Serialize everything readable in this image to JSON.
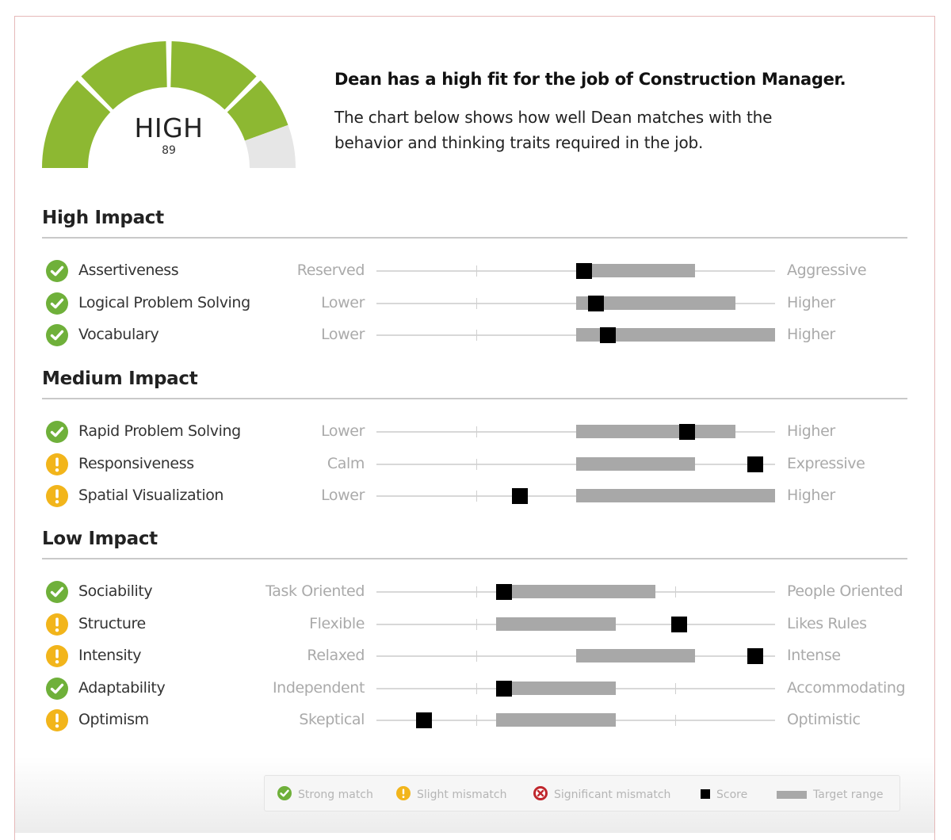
{
  "summary": {
    "fit_level": "HIGH",
    "fit_score": "89",
    "headline": "Dean has a high fit for the job of Construction Manager.",
    "description": "The chart below shows how well Dean matches with the behavior and thinking traits required in the job."
  },
  "colors": {
    "strong": "#6fb03a",
    "slight": "#f2b51b",
    "significant": "#c0272d",
    "gauge_fill": "#8db832",
    "gauge_empty": "#e6e6e6",
    "range": "#a8a8a8",
    "score": "#000000"
  },
  "legend": [
    {
      "icon": "check-circle-icon",
      "label": "Strong match"
    },
    {
      "icon": "exclamation-circle-icon",
      "label": "Slight mismatch"
    },
    {
      "icon": "x-circle-icon",
      "label": "Significant mismatch"
    },
    {
      "icon": "score-square-icon",
      "label": "Score"
    },
    {
      "icon": "target-range-bar-icon",
      "label": "Target range"
    }
  ],
  "chart_data": {
    "type": "range-dot",
    "scale": [
      0,
      10
    ],
    "gauge": {
      "value": 89,
      "max": 100,
      "label": "HIGH"
    },
    "sections": [
      {
        "title": "High Impact",
        "traits": [
          {
            "name": "Assertiveness",
            "low_label": "Reserved",
            "high_label": "Aggressive",
            "range": [
              5,
              8
            ],
            "score": 5.2,
            "status": "strong"
          },
          {
            "name": "Logical Problem Solving",
            "low_label": "Lower",
            "high_label": "Higher",
            "range": [
              5,
              9
            ],
            "score": 5.5,
            "status": "strong"
          },
          {
            "name": "Vocabulary",
            "low_label": "Lower",
            "high_label": "Higher",
            "range": [
              5,
              10
            ],
            "score": 5.8,
            "status": "strong"
          }
        ]
      },
      {
        "title": "Medium Impact",
        "traits": [
          {
            "name": "Rapid Problem Solving",
            "low_label": "Lower",
            "high_label": "Higher",
            "range": [
              5,
              9
            ],
            "score": 7.8,
            "status": "strong"
          },
          {
            "name": "Responsiveness",
            "low_label": "Calm",
            "high_label": "Expressive",
            "range": [
              5,
              8
            ],
            "score": 9.5,
            "status": "slight"
          },
          {
            "name": "Spatial Visualization",
            "low_label": "Lower",
            "high_label": "Higher",
            "range": [
              5,
              10
            ],
            "score": 3.6,
            "status": "slight"
          }
        ]
      },
      {
        "title": "Low Impact",
        "traits": [
          {
            "name": "Sociability",
            "low_label": "Task Oriented",
            "high_label": "People Oriented",
            "range": [
              3,
              7
            ],
            "score": 3.2,
            "status": "strong"
          },
          {
            "name": "Structure",
            "low_label": "Flexible",
            "high_label": "Likes Rules",
            "range": [
              3,
              6
            ],
            "score": 7.6,
            "status": "slight"
          },
          {
            "name": "Intensity",
            "low_label": "Relaxed",
            "high_label": "Intense",
            "range": [
              5,
              8
            ],
            "score": 9.5,
            "status": "slight"
          },
          {
            "name": "Adaptability",
            "low_label": "Independent",
            "high_label": "Accommodating",
            "range": [
              3,
              6
            ],
            "score": 3.2,
            "status": "strong"
          },
          {
            "name": "Optimism",
            "low_label": "Skeptical",
            "high_label": "Optimistic",
            "range": [
              3,
              6
            ],
            "score": 1.2,
            "status": "slight"
          }
        ]
      }
    ]
  }
}
